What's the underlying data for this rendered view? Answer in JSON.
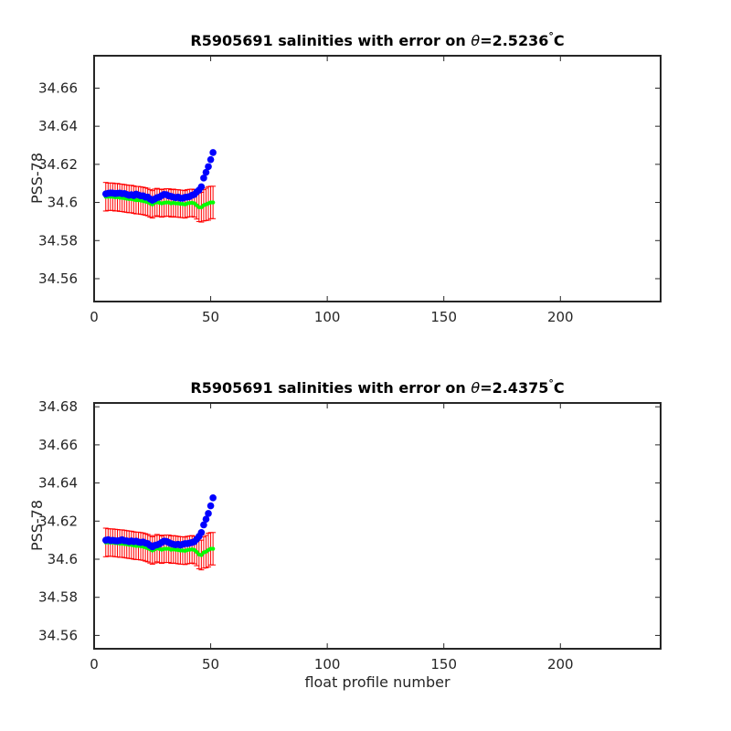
{
  "chart_data": [
    {
      "type": "scatter",
      "title_main": "R5905691 salinities with error on ",
      "title_symbol": "θ",
      "title_value": "=2.5236",
      "title_degree": "°",
      "title_unit": "C",
      "xlabel": "",
      "ylabel": "PSS-78",
      "xlim": [
        0,
        243
      ],
      "ylim": [
        34.548,
        34.677
      ],
      "xticks": [
        0,
        50,
        100,
        150,
        200
      ],
      "yticks": [
        34.56,
        34.58,
        34.6,
        34.62,
        34.64,
        34.66
      ],
      "ytick_labels": [
        "34.56",
        "34.58",
        "34.6",
        "34.62",
        "34.64",
        "34.66"
      ],
      "grid": false,
      "colors": {
        "float": "#0000ff",
        "mapped": "#00ff00",
        "error": "#ff0000"
      },
      "float_x": [
        5,
        6,
        7,
        8,
        9,
        10,
        11,
        12,
        13,
        14,
        15,
        16,
        17,
        18,
        19,
        20,
        21,
        22,
        23,
        24,
        25,
        26,
        27,
        28,
        29,
        30,
        31,
        32,
        33,
        34,
        35,
        36,
        37,
        38,
        39,
        40,
        41,
        42,
        43,
        44,
        45,
        46,
        47,
        48,
        49,
        50,
        51
      ],
      "float_y": [
        34.6045,
        34.6048,
        34.605,
        34.6049,
        34.6047,
        34.6048,
        34.6049,
        34.6046,
        34.6047,
        34.6042,
        34.6038,
        34.6041,
        34.6036,
        34.6044,
        34.6039,
        34.6035,
        34.6035,
        34.6028,
        34.6028,
        34.6018,
        34.6012,
        34.6018,
        34.6025,
        34.6028,
        34.6036,
        34.6042,
        34.6041,
        34.6035,
        34.6032,
        34.6028,
        34.6025,
        34.6028,
        34.6022,
        34.6022,
        34.6027,
        34.6028,
        34.6031,
        34.6038,
        34.6042,
        34.6055,
        34.6065,
        34.6082,
        34.6128,
        34.6158,
        34.6188,
        34.6225,
        34.6262
      ],
      "mapped_x": [
        5,
        6,
        7,
        8,
        9,
        10,
        11,
        12,
        13,
        14,
        15,
        16,
        17,
        18,
        19,
        20,
        21,
        22,
        23,
        24,
        25,
        26,
        27,
        28,
        29,
        30,
        31,
        32,
        33,
        34,
        35,
        36,
        37,
        38,
        39,
        40,
        41,
        42,
        43,
        44,
        45,
        46,
        47,
        48,
        49,
        50,
        51
      ],
      "mapped_y": [
        34.603,
        34.603,
        34.603,
        34.603,
        34.6027,
        34.6028,
        34.6025,
        34.6024,
        34.6022,
        34.602,
        34.6018,
        34.6018,
        34.6015,
        34.6012,
        34.6012,
        34.601,
        34.6008,
        34.6005,
        34.6002,
        34.5995,
        34.599,
        34.5998,
        34.6002,
        34.5998,
        34.5995,
        34.5998,
        34.6,
        34.6,
        34.5995,
        34.5998,
        34.5995,
        34.5995,
        34.5993,
        34.5992,
        34.599,
        34.5995,
        34.5997,
        34.5998,
        34.5995,
        34.5985,
        34.5975,
        34.5975,
        34.5985,
        34.599,
        34.5995,
        34.6,
        34.6
      ],
      "err_half": [
        0.0075,
        0.0072,
        0.0072,
        0.0072,
        0.0072,
        0.0072,
        0.0072,
        0.0072,
        0.0072,
        0.0072,
        0.0072,
        0.0072,
        0.0072,
        0.0072,
        0.0072,
        0.0072,
        0.0072,
        0.0072,
        0.0072,
        0.0072,
        0.0072,
        0.0072,
        0.0072,
        0.0072,
        0.0072,
        0.0072,
        0.0072,
        0.0072,
        0.0072,
        0.0072,
        0.0072,
        0.0072,
        0.0072,
        0.0072,
        0.0072,
        0.0072,
        0.0072,
        0.0072,
        0.0072,
        0.0072,
        0.0075,
        0.0078,
        0.0082,
        0.0085,
        0.0088,
        0.0085,
        0.0085
      ]
    },
    {
      "type": "scatter",
      "title_main": "R5905691 salinities with error on ",
      "title_symbol": "θ",
      "title_value": "=2.4375",
      "title_degree": "°",
      "title_unit": "C",
      "xlabel": "float profile number",
      "ylabel": "PSS-78",
      "xlim": [
        0,
        243
      ],
      "ylim": [
        34.553,
        34.682
      ],
      "xticks": [
        0,
        50,
        100,
        150,
        200
      ],
      "yticks": [
        34.56,
        34.58,
        34.6,
        34.62,
        34.64,
        34.66,
        34.68
      ],
      "ytick_labels": [
        "34.56",
        "34.58",
        "34.6",
        "34.62",
        "34.64",
        "34.66",
        "34.68"
      ],
      "grid": false,
      "colors": {
        "float": "#0000ff",
        "mapped": "#00ff00",
        "error": "#ff0000"
      },
      "float_x": [
        5,
        6,
        7,
        8,
        9,
        10,
        11,
        12,
        13,
        14,
        15,
        16,
        17,
        18,
        19,
        20,
        21,
        22,
        23,
        24,
        25,
        26,
        27,
        28,
        29,
        30,
        31,
        32,
        33,
        34,
        35,
        36,
        37,
        38,
        39,
        40,
        41,
        42,
        43,
        44,
        45,
        46,
        47,
        48,
        49,
        50,
        51
      ],
      "float_y": [
        34.61,
        34.6102,
        34.6098,
        34.6099,
        34.6097,
        34.6096,
        34.6098,
        34.6102,
        34.6097,
        34.6096,
        34.6092,
        34.6096,
        34.6092,
        34.6095,
        34.609,
        34.6088,
        34.609,
        34.6085,
        34.6082,
        34.6072,
        34.6065,
        34.6072,
        34.6075,
        34.608,
        34.6088,
        34.6095,
        34.6093,
        34.6088,
        34.6082,
        34.6078,
        34.6076,
        34.6078,
        34.6074,
        34.6078,
        34.6082,
        34.6082,
        34.6085,
        34.6088,
        34.6092,
        34.6105,
        34.612,
        34.614,
        34.618,
        34.621,
        34.624,
        34.628,
        34.6322
      ],
      "mapped_y": [
        34.6088,
        34.6088,
        34.6087,
        34.6087,
        34.6085,
        34.6084,
        34.6082,
        34.6082,
        34.608,
        34.6078,
        34.6076,
        34.6075,
        34.6072,
        34.607,
        34.607,
        34.6068,
        34.6066,
        34.6062,
        34.6058,
        34.6052,
        34.6046,
        34.6052,
        34.6058,
        34.6054,
        34.605,
        34.6054,
        34.6055,
        34.6055,
        34.605,
        34.6052,
        34.605,
        34.6048,
        34.6046,
        34.6046,
        34.6044,
        34.6048,
        34.605,
        34.6052,
        34.6048,
        34.6038,
        34.6025,
        34.6022,
        34.6035,
        34.604,
        34.6048,
        34.6055,
        34.6055
      ],
      "err_half": [
        0.0075,
        0.0072,
        0.0072,
        0.0072,
        0.0072,
        0.0072,
        0.0072,
        0.0072,
        0.0072,
        0.0072,
        0.0072,
        0.0072,
        0.0072,
        0.0072,
        0.0072,
        0.0072,
        0.0072,
        0.0072,
        0.0072,
        0.0072,
        0.0072,
        0.0072,
        0.0072,
        0.0072,
        0.0072,
        0.0072,
        0.0072,
        0.0072,
        0.0072,
        0.0072,
        0.0072,
        0.0072,
        0.0072,
        0.0072,
        0.0072,
        0.0072,
        0.0072,
        0.0072,
        0.0072,
        0.0072,
        0.0075,
        0.0078,
        0.0082,
        0.0085,
        0.0088,
        0.0085,
        0.0085
      ]
    }
  ]
}
